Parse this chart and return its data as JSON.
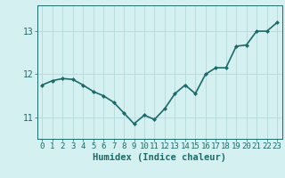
{
  "x": [
    0,
    1,
    2,
    3,
    4,
    5,
    6,
    7,
    8,
    9,
    10,
    11,
    12,
    13,
    14,
    15,
    16,
    17,
    18,
    19,
    20,
    21,
    22,
    23
  ],
  "y": [
    11.75,
    11.85,
    11.9,
    11.88,
    11.75,
    11.6,
    11.5,
    11.35,
    11.1,
    10.85,
    11.05,
    10.95,
    11.2,
    11.55,
    11.75,
    11.55,
    12.0,
    12.15,
    12.15,
    12.65,
    12.68,
    13.0,
    13.0,
    13.2
  ],
  "line_color": "#1a6b6b",
  "marker": "D",
  "marker_size": 2.0,
  "bg_color": "#d4f0f0",
  "grid_color": "#b8dcdc",
  "xlabel": "Humidex (Indice chaleur)",
  "xlabel_fontsize": 7.5,
  "tick_fontsize": 6.5,
  "yticks": [
    11,
    12,
    13
  ],
  "ylim": [
    10.5,
    13.6
  ],
  "xlim": [
    -0.5,
    23.5
  ],
  "line_width": 1.2
}
